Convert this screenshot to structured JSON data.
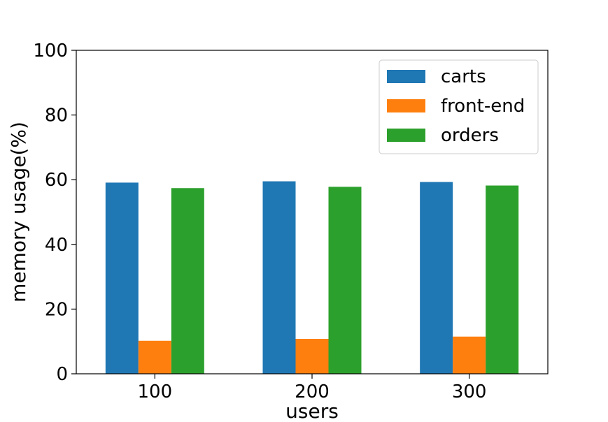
{
  "chart_data": {
    "type": "bar",
    "categories": [
      "100",
      "200",
      "300"
    ],
    "series": [
      {
        "name": "carts",
        "values": [
          59.1,
          59.5,
          59.3
        ],
        "color": "#1f77b4"
      },
      {
        "name": "front-end",
        "values": [
          10.2,
          10.8,
          11.5
        ],
        "color": "#ff7f0e"
      },
      {
        "name": "orders",
        "values": [
          57.4,
          57.8,
          58.2
        ],
        "color": "#2ca02c"
      }
    ],
    "xlabel": "users",
    "ylabel": "memory usage(%)",
    "ylim": [
      0,
      100
    ],
    "yticks": [
      "0",
      "20",
      "40",
      "60",
      "80",
      "100"
    ],
    "grid": false,
    "legend_position": "top-right"
  }
}
